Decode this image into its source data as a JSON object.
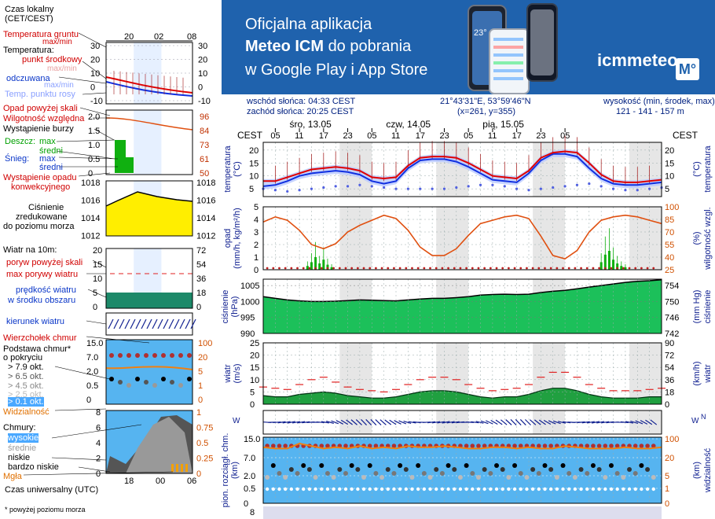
{
  "banner": {
    "line1": "Oficjalna aplikacja",
    "line2_bold": "Meteo ICM",
    "line2_rest": "do pobrania",
    "line3": "w Google Play i App Store",
    "logo": "icmmeteo",
    "logo_box": "M°",
    "phone_temp": "23°"
  },
  "header": {
    "sunrise": "wschód słońca: 04:33 CEST",
    "sunset": "zachód słońca: 20:25 CEST",
    "coords": "21°43'31\"E, 53°59'46\"N",
    "grid": "(x=261, y=355)",
    "elev_label": "wysokość (min, środek, max)",
    "elev_value": "121 - 141 - 157 m"
  },
  "days": [
    "śro, 13.05",
    "czw, 14.05",
    "pią, 15.05"
  ],
  "hours": [
    "05",
    "11",
    "17",
    "23",
    "05",
    "11",
    "17",
    "23",
    "05",
    "11",
    "17",
    "23",
    "05"
  ],
  "cest": "CEST",
  "legend": {
    "time_label": "Czas lokalny\n(CET/CEST)",
    "time_ticks": [
      "20",
      "02",
      "08"
    ],
    "ground_temp": "Temperatura gruntu",
    "ground_temp2": "max/min",
    "temperature": "Temperatura:",
    "mid_point": "punkt środkowy",
    "max_min": "max/min",
    "felt": "odczuwana",
    "felt2": "max/min",
    "dew": "Temp. punktu rosy",
    "temp_ticks": [
      "30",
      "20",
      "10",
      "0",
      "-10"
    ],
    "precip_above": "Opad powyżej skali",
    "humidity": "Wilgotność względna",
    "storm": "Wystąpienie burzy",
    "rain": "Deszcz:",
    "max": "max",
    "avg": "średni",
    "snow": "Śnieg:",
    "precip_occ": "Wystąpienie opadu",
    "convective": "konwekcyjnego",
    "precip_ticks": [
      "2.0",
      "1.5",
      "1.0",
      "0.5",
      "0"
    ],
    "hum_ticks": [
      "96",
      "84",
      "73",
      "61",
      "50"
    ],
    "pressure": "Ciśnienie",
    "pressure2": "zredukowane",
    "pressure3": "do poziomu morza",
    "press_ticks": [
      "1018",
      "1016",
      "1014",
      "1012"
    ],
    "wind": "Wiatr na 10m:",
    "gusts_above": "poryw powyżej skali",
    "max_gust": "max porywy wiatru",
    "wind_speed": "prędkość wiatru",
    "wind_avg": "w środku obszaru",
    "wind_ticks": [
      "20",
      "15",
      "10",
      "5",
      "0"
    ],
    "wind_ticks_r": [
      "72",
      "54",
      "36",
      "18",
      "0"
    ],
    "wind_dir": "kierunek wiatru",
    "cloud_top": "Wierzchołek chmur",
    "cloud_base": "Podstawa chmur*",
    "cloud_cov": "o pokryciu",
    "okt79": "> 7.9 okt.",
    "okt65": "> 6.5 okt.",
    "okt45": "> 4.5 okt.",
    "okt25": "> 2.5 okt.",
    "okt01": "> 0.1 okt.",
    "base_ticks": [
      "15.0",
      "7.0",
      "2.0",
      "0.5",
      "0"
    ],
    "vis_ticks": [
      "100",
      "20",
      "5",
      "1",
      "0"
    ],
    "visibility": "Widzialność",
    "clouds": "Chmury:",
    "high": "wysokie",
    "middle": "średnie",
    "low": "niskie",
    "very_low": "bardzo niskie",
    "fog": "Mgła",
    "cloud_ticks": [
      "8",
      "6",
      "4",
      "2",
      "0"
    ],
    "cloud_ticks_r": [
      "1",
      "0.75",
      "0.5",
      "0.25",
      "0"
    ],
    "utc": "Czas uniwersalny (UTC)",
    "utc_ticks": [
      "18",
      "00",
      "06"
    ],
    "footnote": "* powyżej poziomu morza"
  },
  "axes": {
    "temp_left": "temperatura",
    "temp_left_u": "(°C)",
    "temp_right": "temperatura",
    "temp_right_u": "(°C)",
    "precip": "opad",
    "precip_u": "(mm/h, kg/m²/h)",
    "hum": "wilgotność wzgl.",
    "hum_u": "(%)",
    "press": "ciśnienie",
    "press_u": "(hPa)",
    "press_r": "ciśnienie",
    "press_r_u": "(mm Hg)",
    "wind": "wiatr",
    "wind_u": "(m/s)",
    "wind_r": "wiatr",
    "wind_r_u": "(km/h)",
    "base": "pion. rozciągł. chm.",
    "base_u": "(km)",
    "vis": "widzialność",
    "vis_u": "(km)"
  },
  "chart_data": {
    "type": "line",
    "x_hours_local": [
      2,
      5,
      8,
      11,
      14,
      17,
      20,
      23,
      26,
      29,
      32,
      35,
      38,
      41,
      44,
      47,
      50,
      53,
      56,
      59,
      62,
      65,
      68,
      71,
      74,
      77,
      80,
      83,
      86,
      89,
      92,
      95,
      98,
      101
    ],
    "temperature": {
      "ylim": [
        2,
        23
      ],
      "ticks": [
        5,
        10,
        15,
        20
      ],
      "ticks_right": [
        5,
        10,
        15,
        20
      ],
      "mid": [
        8,
        8,
        9.5,
        11,
        12.5,
        13,
        13.5,
        13,
        12,
        9.5,
        9,
        9.5,
        14,
        17,
        17.5,
        17.5,
        17,
        15,
        12.5,
        10,
        9.5,
        9,
        12,
        17,
        19,
        19.5,
        19,
        15,
        10.5,
        8,
        7.5,
        7.5,
        8,
        8.5
      ],
      "felt": [
        6,
        6.5,
        8,
        10,
        11,
        11.5,
        12,
        11.5,
        10.5,
        8,
        7,
        8,
        13,
        16,
        16.5,
        16.5,
        15.5,
        13.5,
        11,
        8.5,
        8,
        7.5,
        11,
        16,
        18.5,
        18.5,
        17.5,
        13,
        9,
        7,
        6.5,
        6.5,
        7,
        7.5
      ],
      "dew": [
        5,
        4.5,
        4,
        4.5,
        5,
        5.5,
        6,
        6,
        6.5,
        6,
        5.5,
        5,
        5,
        5,
        5,
        5,
        5.5,
        6,
        6.5,
        6.5,
        6,
        5,
        4.5,
        5,
        5.5,
        6,
        6.5,
        7,
        6,
        5,
        4.5,
        4.5,
        5,
        5.5
      ]
    },
    "precipitation": {
      "ylim": [
        0,
        5
      ],
      "ticks": [
        0,
        1,
        2,
        3,
        4,
        5
      ],
      "humidity_ticks": [
        25,
        40,
        55,
        70,
        85,
        100
      ],
      "humidity": [
        82,
        88,
        84,
        72,
        55,
        50,
        56,
        70,
        78,
        84,
        90,
        86,
        72,
        52,
        42,
        42,
        50,
        66,
        80,
        84,
        88,
        90,
        86,
        65,
        42,
        38,
        48,
        70,
        84,
        88,
        90,
        88,
        84,
        80
      ],
      "rain_times": [
        13,
        14,
        15,
        16,
        17,
        18,
        19,
        86,
        87,
        88,
        89,
        90,
        91,
        92
      ],
      "rain_values": [
        0.3,
        0.6,
        1.0,
        0.5,
        0.8,
        0.4,
        0.2,
        0.6,
        1.2,
        1.5,
        0.8,
        0.5,
        0.3,
        0.2
      ]
    },
    "pressure": {
      "ylim": [
        990,
        1007
      ],
      "ticks": [
        990,
        995,
        1000,
        1005
      ],
      "ticks_right": [
        742,
        746,
        750,
        754
      ],
      "values": [
        1001.5,
        1001,
        1000.5,
        1000.2,
        1000,
        1000,
        1000.1,
        1000.3,
        1000.5,
        1000.4,
        1000.3,
        1000.2,
        1000.5,
        1000.8,
        1001,
        1001,
        1001.2,
        1001.5,
        1002,
        1002.2,
        1002.3,
        1002.2,
        1002.3,
        1002.8,
        1003.2,
        1003.5,
        1004,
        1004.5,
        1005,
        1005.5,
        1006,
        1006.3,
        1006.5,
        1006.8
      ]
    },
    "wind": {
      "ylim": [
        0,
        25
      ],
      "ticks": [
        0,
        5,
        10,
        15,
        20,
        25
      ],
      "ticks_right": [
        0,
        18,
        36,
        54,
        72,
        90
      ],
      "speed": [
        3.5,
        3,
        3,
        4,
        4.5,
        5,
        4.5,
        3.5,
        3,
        2.5,
        2.5,
        3,
        4,
        5,
        5.5,
        5.5,
        5,
        4,
        3,
        2.5,
        3,
        3,
        4,
        5.5,
        6.5,
        6.5,
        5.5,
        4,
        3,
        2.5,
        2.5,
        2.5,
        3,
        3
      ],
      "gusts": [
        7,
        6.5,
        6,
        8,
        10,
        11,
        9,
        7,
        6,
        5.5,
        5,
        6,
        8,
        10,
        11,
        11,
        10,
        8,
        6.5,
        5.5,
        6,
        6.5,
        8,
        11,
        13,
        13,
        11,
        8,
        6.5,
        5.5,
        5.5,
        5.5,
        6,
        6.5
      ]
    },
    "clouds": {
      "base_ticks": [
        "15.0",
        "7.0",
        "2.0",
        "0.5",
        "0"
      ],
      "vis_ticks": [
        "100",
        "20",
        "5",
        "1",
        "0"
      ],
      "visibility": [
        17,
        16,
        16,
        20,
        18,
        16,
        17,
        16,
        18,
        16,
        17,
        16,
        18,
        17,
        17,
        18,
        17,
        16,
        16,
        17,
        17,
        16,
        17,
        16,
        16,
        18,
        17,
        16,
        16,
        16,
        17,
        16,
        16,
        17
      ]
    }
  }
}
